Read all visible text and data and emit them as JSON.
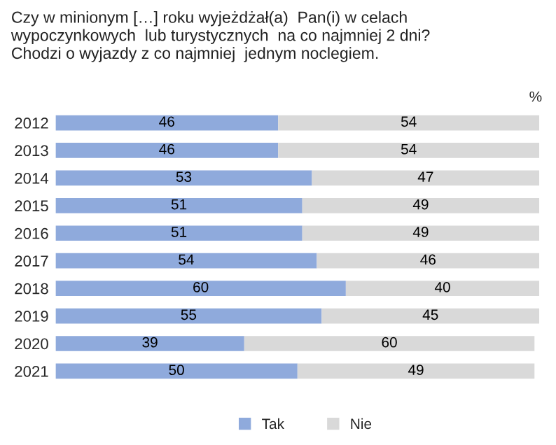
{
  "chart_data": {
    "type": "bar",
    "orientation": "horizontal",
    "stacked": true,
    "title": "Czy w minionym […] roku wyjeżdżał(a)  Pan(i) w celach\nwypoczynkowych  lub turystycznych  na co najmniej 2 dni?\nChodzi o wyjazdy z co najmniej  jednym noclegiem.",
    "categories": [
      "2012",
      "2013",
      "2014",
      "2015",
      "2016",
      "2017",
      "2018",
      "2019",
      "2020",
      "2021"
    ],
    "series": [
      {
        "name": "Tak",
        "color": "#8faadc",
        "values": [
          46,
          46,
          53,
          51,
          51,
          54,
          60,
          55,
          39,
          50
        ]
      },
      {
        "name": "Nie",
        "color": "#d9d9d9",
        "values": [
          54,
          54,
          47,
          49,
          49,
          46,
          40,
          45,
          60,
          49
        ]
      }
    ],
    "xlim": [
      0,
      100
    ],
    "data_labels": true,
    "legend": "bottom",
    "grid": false,
    "tick_labels": "y",
    "annotations": [
      "%"
    ]
  }
}
